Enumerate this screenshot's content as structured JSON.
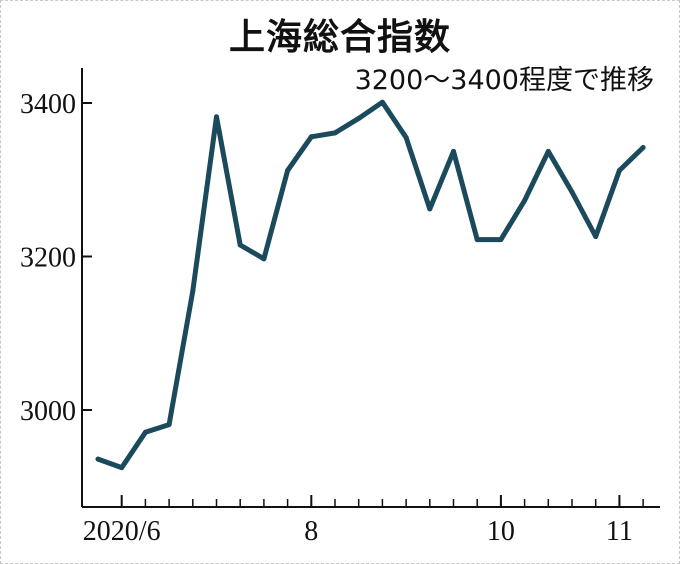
{
  "chart_data": {
    "type": "line",
    "title": "上海総合指数",
    "subtitle": "3200～3400程度で推移",
    "xlabel": "",
    "ylabel": "",
    "ylim": [
      2870,
      3420
    ],
    "y_ticks": [
      3000,
      3200,
      3400
    ],
    "x_ticks": [
      {
        "index": 1,
        "label": "2020/6"
      },
      {
        "index": 9,
        "label": "8"
      },
      {
        "index": 17,
        "label": "10"
      },
      {
        "index": 22,
        "label": "11"
      }
    ],
    "series": [
      {
        "values": [
          2936,
          2925,
          2971,
          2981,
          3155,
          3382,
          3215,
          3197,
          3312,
          3356,
          3361,
          3380,
          3401,
          3355,
          3262,
          3337,
          3222,
          3222,
          3273,
          3337,
          3284,
          3226,
          3312,
          3342
        ],
        "color": "#1a4a5c"
      }
    ],
    "grid": false
  }
}
